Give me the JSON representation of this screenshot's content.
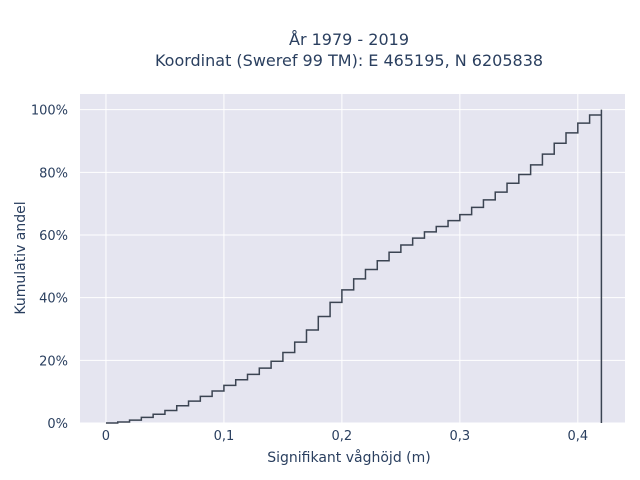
{
  "chart_data": {
    "type": "line",
    "title_line1": "År 1979 - 2019",
    "title_line2": "Koordinat (Sweref 99 TM): E 465195, N 6205838",
    "xlabel": "Signifikant våghöjd (m)",
    "ylabel": "Kumulativ andel",
    "xlim": [
      -0.022,
      0.44
    ],
    "ylim": [
      0,
      1.05
    ],
    "x_ticks": [
      0,
      0.1,
      0.2,
      0.3,
      0.4
    ],
    "x_tick_labels": [
      "0",
      "0,1",
      "0,2",
      "0,3",
      "0,4"
    ],
    "y_ticks": [
      0,
      0.2,
      0.4,
      0.6,
      0.8,
      1.0
    ],
    "y_tick_labels": [
      "0%",
      "20%",
      "40%",
      "60%",
      "80%",
      "100%"
    ],
    "grid": true,
    "background": "#e5e5f0",
    "line_color": "#3b4452",
    "series": [
      {
        "step": "post",
        "x": [
          0,
          0.01,
          0.02,
          0.03,
          0.04,
          0.05,
          0.06,
          0.07,
          0.08,
          0.09,
          0.1,
          0.11,
          0.12,
          0.13,
          0.14,
          0.15,
          0.16,
          0.17,
          0.18,
          0.19,
          0.2,
          0.21,
          0.22,
          0.23,
          0.24,
          0.25,
          0.26,
          0.27,
          0.28,
          0.29,
          0.3,
          0.31,
          0.32,
          0.33,
          0.34,
          0.35,
          0.36,
          0.37,
          0.38,
          0.39,
          0.4,
          0.41,
          0.42
        ],
        "y": [
          0.0,
          0.003,
          0.009,
          0.018,
          0.028,
          0.04,
          0.055,
          0.07,
          0.085,
          0.102,
          0.12,
          0.138,
          0.155,
          0.175,
          0.197,
          0.225,
          0.258,
          0.297,
          0.34,
          0.385,
          0.425,
          0.46,
          0.49,
          0.518,
          0.545,
          0.568,
          0.59,
          0.61,
          0.627,
          0.646,
          0.665,
          0.688,
          0.712,
          0.737,
          0.765,
          0.793,
          0.824,
          0.858,
          0.893,
          0.926,
          0.957,
          0.983,
          1.0
        ]
      }
    ]
  }
}
